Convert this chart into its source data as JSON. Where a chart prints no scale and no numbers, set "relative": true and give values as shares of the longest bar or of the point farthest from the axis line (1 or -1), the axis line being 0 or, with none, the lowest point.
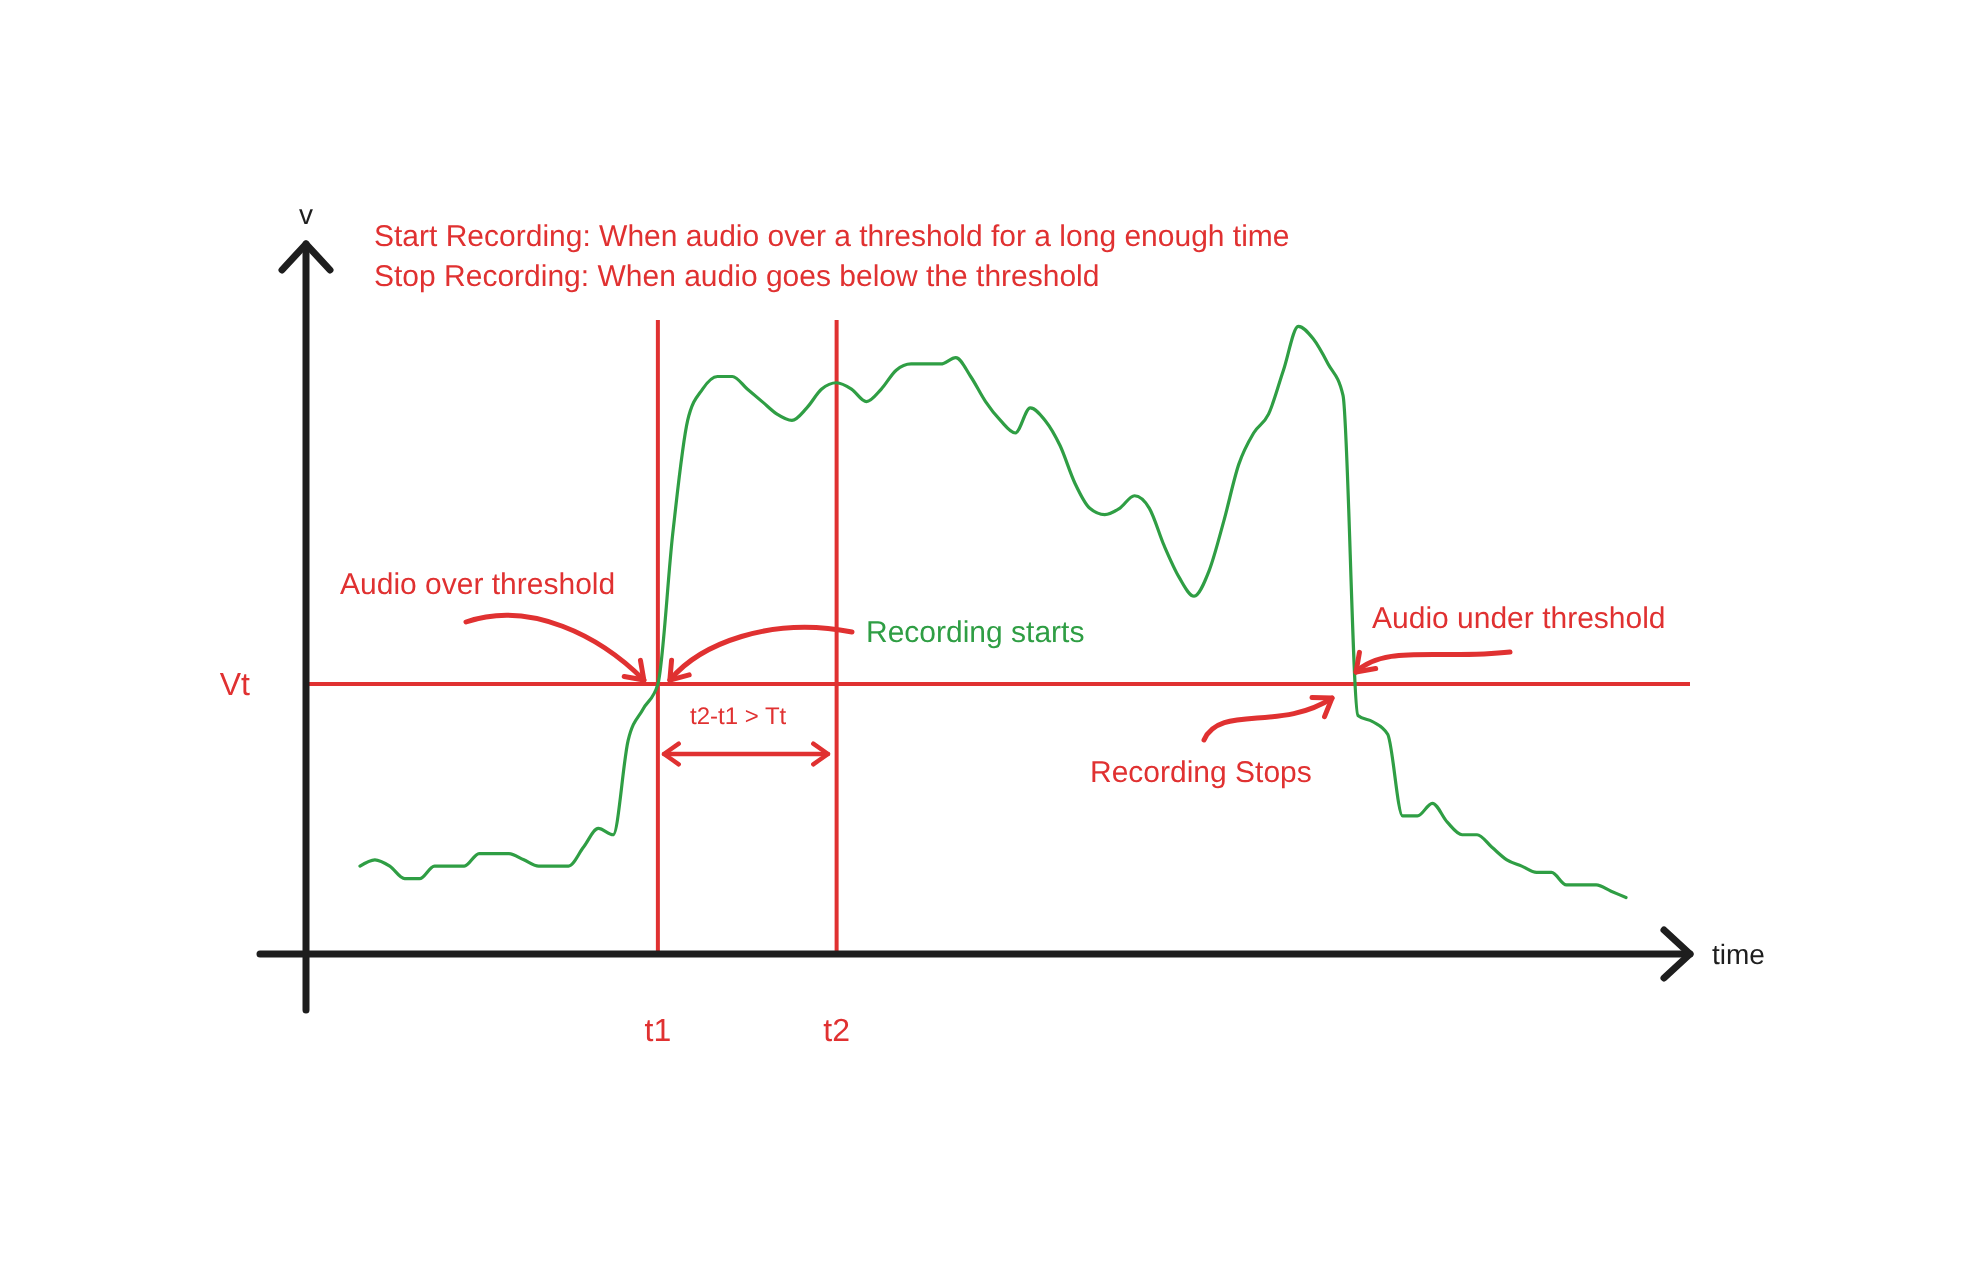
{
  "chart_data": {
    "type": "line",
    "relative": true,
    "xlabel": "time",
    "ylabel": "v",
    "color": "#2f9e44",
    "categories": [
      null,
      null,
      null,
      null,
      null,
      null,
      null,
      null,
      null,
      null,
      null,
      null,
      null,
      null,
      null,
      null,
      null,
      null,
      null,
      null,
      "t1",
      null,
      null,
      null,
      null,
      null,
      null,
      null,
      null,
      null,
      null,
      null,
      "t2",
      null,
      null,
      null,
      null,
      null,
      null,
      null,
      null,
      null,
      null,
      null,
      null,
      null,
      null,
      null,
      null,
      null,
      null,
      null,
      null,
      null,
      null,
      null,
      null,
      null,
      null,
      null,
      null,
      null,
      null,
      null,
      null,
      null,
      null,
      null,
      null,
      null,
      null,
      null,
      null,
      null,
      null,
      null,
      null,
      null,
      null,
      null,
      null,
      null,
      null,
      null,
      null,
      null
    ],
    "values": [
      0.14,
      0.15,
      0.14,
      0.12,
      0.12,
      0.14,
      0.14,
      0.14,
      0.16,
      0.16,
      0.16,
      0.15,
      0.14,
      0.14,
      0.14,
      0.17,
      0.2,
      0.19,
      0.34,
      0.39,
      0.43,
      0.67,
      0.85,
      0.9,
      0.92,
      0.92,
      0.9,
      0.88,
      0.86,
      0.85,
      0.87,
      0.9,
      0.91,
      0.9,
      0.88,
      0.9,
      0.93,
      0.94,
      0.94,
      0.94,
      0.95,
      0.92,
      0.88,
      0.85,
      0.83,
      0.87,
      0.85,
      0.81,
      0.75,
      0.71,
      0.7,
      0.71,
      0.73,
      0.71,
      0.65,
      0.6,
      0.57,
      0.61,
      0.69,
      0.78,
      0.83,
      0.86,
      0.93,
      1,
      0.98,
      0.94,
      0.89,
      0.38,
      0.37,
      0.35,
      0.22,
      0.22,
      0.24,
      0.21,
      0.19,
      0.19,
      0.17,
      0.15,
      0.14,
      0.13,
      0.13,
      0.11,
      0.11,
      0.11,
      0.1,
      0.09
    ],
    "ref_lines": [
      {
        "axis": "y",
        "value": 0.43,
        "label": "Vt",
        "color": "#e03131"
      },
      {
        "axis": "x",
        "value": "t1",
        "color": "#e03131"
      },
      {
        "axis": "x",
        "value": "t2",
        "color": "#e03131"
      }
    ],
    "annotations": [
      "Start Recording: When audio over a threshold for a long enough time",
      "Stop Recording: When audio goes below the threshold",
      {
        "text": "Audio over threshold",
        "x": "t1",
        "y": 0.43
      },
      {
        "text": "Recording starts",
        "x": "t1",
        "y": 0.43
      },
      {
        "text": "Audio under threshold",
        "y": 0.43
      },
      {
        "text": "Recording Stops",
        "y": 0.43
      },
      "t2-t1 > Tt"
    ]
  }
}
